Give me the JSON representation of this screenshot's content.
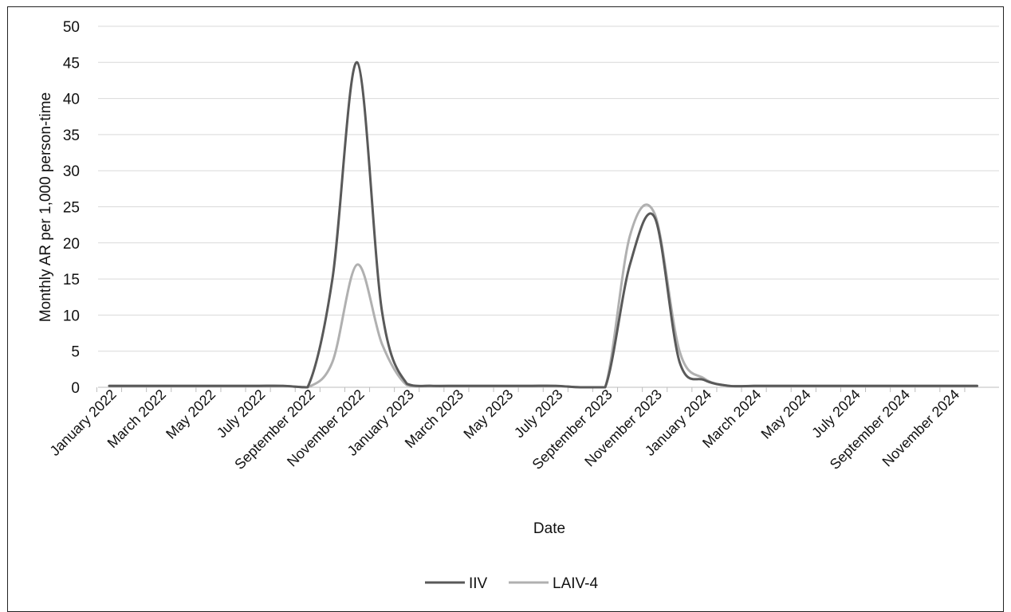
{
  "chart_data": {
    "type": "line",
    "xlabel": "Date",
    "ylabel": "Monthly AR per 1,000 person-time",
    "ylim": [
      0,
      50
    ],
    "yticks": [
      0,
      5,
      10,
      15,
      20,
      25,
      30,
      35,
      40,
      45,
      50
    ],
    "grid": true,
    "legend_position": "bottom",
    "x_tick_labels": [
      "January 2022",
      "March 2022",
      "May 2022",
      "July 2022",
      "September 2022",
      "November 2022",
      "January 2023",
      "March 2023",
      "May 2023",
      "July 2023",
      "September 2023",
      "November 2023",
      "January 2024",
      "March 2024",
      "May 2024",
      "July 2024",
      "September 2024",
      "November 2024"
    ],
    "x": [
      "2022-01",
      "2022-02",
      "2022-03",
      "2022-04",
      "2022-05",
      "2022-06",
      "2022-07",
      "2022-08",
      "2022-09",
      "2022-10",
      "2022-11",
      "2022-12",
      "2023-01",
      "2023-02",
      "2023-03",
      "2023-04",
      "2023-05",
      "2023-06",
      "2023-07",
      "2023-08",
      "2023-09",
      "2023-10",
      "2023-11",
      "2023-12",
      "2024-01",
      "2024-02",
      "2024-03",
      "2024-04",
      "2024-05",
      "2024-06",
      "2024-07",
      "2024-08",
      "2024-09",
      "2024-10",
      "2024-11",
      "2024-12"
    ],
    "series": [
      {
        "name": "IIV",
        "color": "#595959",
        "values": [
          0.2,
          0.2,
          0.2,
          0.2,
          0.2,
          0.2,
          0.2,
          0.2,
          0,
          15,
          45,
          10.5,
          0.5,
          0.2,
          0.2,
          0.2,
          0.2,
          0.2,
          0.2,
          0,
          0,
          17,
          23.5,
          3.5,
          1,
          0.2,
          0.2,
          0.2,
          0.2,
          0.2,
          0.2,
          0.2,
          0.2,
          0.2,
          0.2,
          0.2
        ]
      },
      {
        "name": "LAIV-4",
        "color": "#b0b0b0",
        "values": [
          0.2,
          0.2,
          0.2,
          0.2,
          0.2,
          0.2,
          0.2,
          0.2,
          0,
          3.5,
          17,
          6,
          0.3,
          0.2,
          0.2,
          0.2,
          0.2,
          0.2,
          0.2,
          0,
          0,
          21,
          24,
          5,
          1.2,
          0.2,
          0.2,
          0.2,
          0.2,
          0.2,
          0.2,
          0.2,
          0.2,
          0.2,
          0.2,
          0.2
        ]
      }
    ]
  }
}
